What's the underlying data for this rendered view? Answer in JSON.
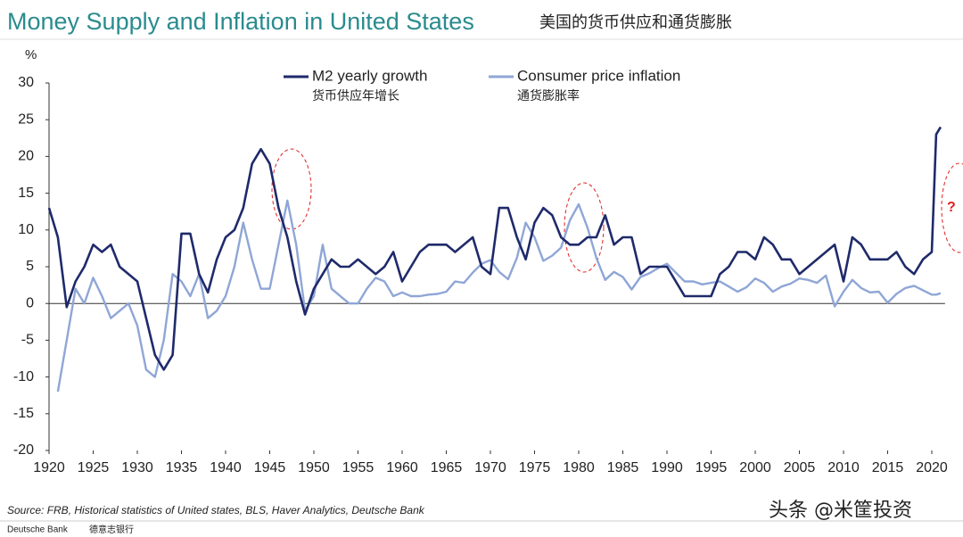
{
  "chart_data": {
    "type": "line",
    "title": "Money Supply and Inflation in United States",
    "subtitle": "美国的货币供应和通货膨胀",
    "y_label": "%",
    "annotation": "?",
    "source": "Source: FRB, Historical statistics of United states,  BLS, Haver Analytics, Deutsche Bank",
    "footer_brand": "Deutsche Bank",
    "footer_brand_cn": "德意志银行",
    "watermark": "头条 @米筐投资",
    "x": [
      1920,
      1921,
      1922,
      1923,
      1924,
      1925,
      1926,
      1927,
      1928,
      1929,
      1930,
      1931,
      1932,
      1933,
      1934,
      1935,
      1936,
      1937,
      1938,
      1939,
      1940,
      1941,
      1942,
      1943,
      1944,
      1945,
      1946,
      1947,
      1948,
      1949,
      1950,
      1951,
      1952,
      1953,
      1954,
      1955,
      1956,
      1957,
      1958,
      1959,
      1960,
      1961,
      1962,
      1963,
      1964,
      1965,
      1966,
      1967,
      1968,
      1969,
      1970,
      1971,
      1972,
      1973,
      1974,
      1975,
      1976,
      1977,
      1978,
      1979,
      1980,
      1981,
      1982,
      1983,
      1984,
      1985,
      1986,
      1987,
      1988,
      1989,
      1990,
      1991,
      1992,
      1993,
      1994,
      1995,
      1996,
      1997,
      1998,
      1999,
      2000,
      2001,
      2002,
      2003,
      2004,
      2005,
      2006,
      2007,
      2008,
      2009,
      2010,
      2011,
      2012,
      2013,
      2014,
      2015,
      2016,
      2017,
      2018,
      2019,
      2020,
      2020.5,
      2021
    ],
    "series": [
      {
        "name": "M2 yearly growth",
        "name_cn": "货币供应年增长",
        "color": "#1f2a6b",
        "values": [
          13,
          9,
          -0.5,
          3,
          5,
          8,
          7,
          8,
          5,
          4,
          3,
          -2,
          -7,
          -9,
          -7,
          9.5,
          9.5,
          4,
          1.5,
          6,
          9,
          10,
          13,
          19,
          21,
          19,
          13,
          9,
          3,
          -1.5,
          2,
          4,
          6,
          5,
          5,
          6,
          5,
          4,
          5,
          7,
          3,
          5,
          7,
          8,
          8,
          8,
          7,
          8,
          9,
          5,
          4,
          13,
          13,
          9,
          6,
          11,
          13,
          12,
          9,
          8,
          8,
          9,
          9,
          12,
          8,
          9,
          9,
          4,
          5,
          5,
          5,
          3,
          1,
          1,
          1,
          1,
          4,
          5,
          7,
          7,
          6,
          9,
          8,
          6,
          6,
          4,
          5,
          6,
          7,
          8,
          3,
          9,
          8,
          6,
          6,
          6,
          7,
          5,
          4,
          6,
          7,
          23,
          24
        ]
      },
      {
        "name": "Consumer price inflation",
        "name_cn": "通货膨胀率",
        "color": "#8fa6d6",
        "values": [
          null,
          -12,
          -5,
          2,
          0,
          3.5,
          1,
          -2,
          -1,
          0,
          -3,
          -9,
          -10,
          -5,
          4,
          3,
          1,
          4,
          -2,
          -1,
          1,
          5,
          11,
          6,
          2,
          2,
          8,
          14,
          8,
          -1,
          1,
          8,
          2,
          1,
          0,
          0,
          2,
          3.5,
          3,
          1,
          1.5,
          1,
          1,
          1.2,
          1.3,
          1.6,
          3,
          2.8,
          4.2,
          5.4,
          5.9,
          4.3,
          3.3,
          6.2,
          11,
          9,
          5.8,
          6.5,
          7.6,
          11.3,
          13.5,
          10.3,
          6.2,
          3.2,
          4.3,
          3.6,
          1.9,
          3.6,
          4.1,
          4.8,
          5.4,
          4.2,
          3,
          3,
          2.6,
          2.8,
          3,
          2.3,
          1.6,
          2.2,
          3.4,
          2.8,
          1.6,
          2.3,
          2.7,
          3.4,
          3.2,
          2.8,
          3.8,
          -0.4,
          1.6,
          3.2,
          2.1,
          1.5,
          1.6,
          0.1,
          1.3,
          2.1,
          2.4,
          1.8,
          1.2,
          1.2,
          1.4
        ]
      }
    ],
    "xlim": [
      1920,
      2021.5
    ],
    "xticks": [
      1920,
      1925,
      1930,
      1935,
      1940,
      1945,
      1950,
      1955,
      1960,
      1965,
      1970,
      1975,
      1980,
      1985,
      1990,
      1995,
      2000,
      2005,
      2010,
      2015,
      2020
    ],
    "ylim": [
      -20,
      30
    ],
    "yticks": [
      -20,
      -15,
      -10,
      -5,
      0,
      5,
      10,
      15,
      20,
      25,
      30
    ]
  }
}
